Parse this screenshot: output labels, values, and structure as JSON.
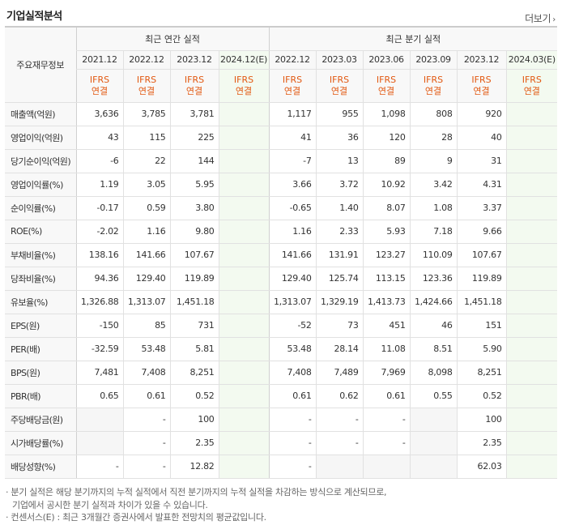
{
  "header": {
    "title": "기업실적분석",
    "more_label": "더보기"
  },
  "table": {
    "row_label_header": "주요재무정보",
    "annual_group_label": "최근 연간 실적",
    "quarter_group_label": "최근 분기 실적",
    "annual_periods": [
      "2021.12",
      "2022.12",
      "2023.12",
      "2024.12(E)"
    ],
    "quarter_periods": [
      "2022.12",
      "2023.03",
      "2023.06",
      "2023.09",
      "2023.12",
      "2024.03(E)"
    ],
    "ifrs_line1": "IFRS",
    "ifrs_line2": "연결",
    "rows": [
      {
        "label": "매출액(억원)",
        "values": [
          "3,636",
          "3,785",
          "3,781",
          "",
          "1,117",
          "955",
          "1,098",
          "808",
          "920",
          ""
        ]
      },
      {
        "label": "영업이익(억원)",
        "values": [
          "43",
          "115",
          "225",
          "",
          "41",
          "36",
          "120",
          "28",
          "40",
          ""
        ]
      },
      {
        "label": "당기순이익(억원)",
        "values": [
          "-6",
          "22",
          "144",
          "",
          "-7",
          "13",
          "89",
          "9",
          "31",
          ""
        ]
      },
      {
        "label": "영업이익률(%)",
        "values": [
          "1.19",
          "3.05",
          "5.95",
          "",
          "3.66",
          "3.72",
          "10.92",
          "3.42",
          "4.31",
          ""
        ]
      },
      {
        "label": "순이익률(%)",
        "values": [
          "-0.17",
          "0.59",
          "3.80",
          "",
          "-0.65",
          "1.40",
          "8.07",
          "1.08",
          "3.37",
          ""
        ]
      },
      {
        "label": "ROE(%)",
        "values": [
          "-2.02",
          "1.16",
          "9.80",
          "",
          "1.16",
          "2.33",
          "5.93",
          "7.18",
          "9.66",
          ""
        ]
      },
      {
        "label": "부채비율(%)",
        "values": [
          "138.16",
          "141.66",
          "107.67",
          "",
          "141.66",
          "131.91",
          "123.27",
          "110.09",
          "107.67",
          ""
        ]
      },
      {
        "label": "당좌비율(%)",
        "values": [
          "94.36",
          "129.40",
          "119.89",
          "",
          "129.40",
          "125.74",
          "113.15",
          "123.36",
          "119.89",
          ""
        ]
      },
      {
        "label": "유보율(%)",
        "values": [
          "1,326.88",
          "1,313.07",
          "1,451.18",
          "",
          "1,313.07",
          "1,329.19",
          "1,413.73",
          "1,424.66",
          "1,451.18",
          ""
        ]
      },
      {
        "label": "EPS(원)",
        "values": [
          "-150",
          "85",
          "731",
          "",
          "-52",
          "73",
          "451",
          "46",
          "151",
          ""
        ]
      },
      {
        "label": "PER(배)",
        "values": [
          "-32.59",
          "53.48",
          "5.81",
          "",
          "53.48",
          "28.14",
          "11.08",
          "8.51",
          "5.90",
          ""
        ]
      },
      {
        "label": "BPS(원)",
        "values": [
          "7,481",
          "7,408",
          "8,251",
          "",
          "7,408",
          "7,489",
          "7,969",
          "8,098",
          "8,251",
          ""
        ]
      },
      {
        "label": "PBR(배)",
        "values": [
          "0.65",
          "0.61",
          "0.52",
          "",
          "0.61",
          "0.62",
          "0.61",
          "0.55",
          "0.52",
          ""
        ]
      },
      {
        "label": "주당배당금(원)",
        "values": [
          "",
          "-",
          "100",
          "",
          "-",
          "-",
          "-",
          "",
          "100",
          ""
        ]
      },
      {
        "label": "시가배당률(%)",
        "values": [
          "",
          "-",
          "2.35",
          "",
          "-",
          "-",
          "-",
          "",
          "2.35",
          ""
        ]
      },
      {
        "label": "배당성향(%)",
        "values": [
          "-",
          "-",
          "12.82",
          "",
          "-",
          "",
          "",
          "",
          "62.03",
          ""
        ]
      }
    ],
    "blank_cells": [
      [
        13,
        0
      ],
      [
        14,
        0
      ],
      [
        13,
        7
      ],
      [
        14,
        7
      ],
      [
        15,
        5
      ],
      [
        15,
        6
      ],
      [
        15,
        7
      ]
    ]
  },
  "notes": {
    "line1": "· 분기 실적은 해당 분기까지의 누적 실적에서 직전 분기까지의 누적 실적을 차감하는 방식으로 계산되므로,",
    "line1b": "기업에서 공시한 분기 실적과 차이가 있을 수 있습니다.",
    "line2": "· 컨센서스(E) : 최근 3개월간 증권사에서 발표한 전망치의 평균값입니다."
  },
  "colors": {
    "negative": "#e4292a",
    "ifrs": "#e25811",
    "estimate_bg": "#f3faf0"
  }
}
